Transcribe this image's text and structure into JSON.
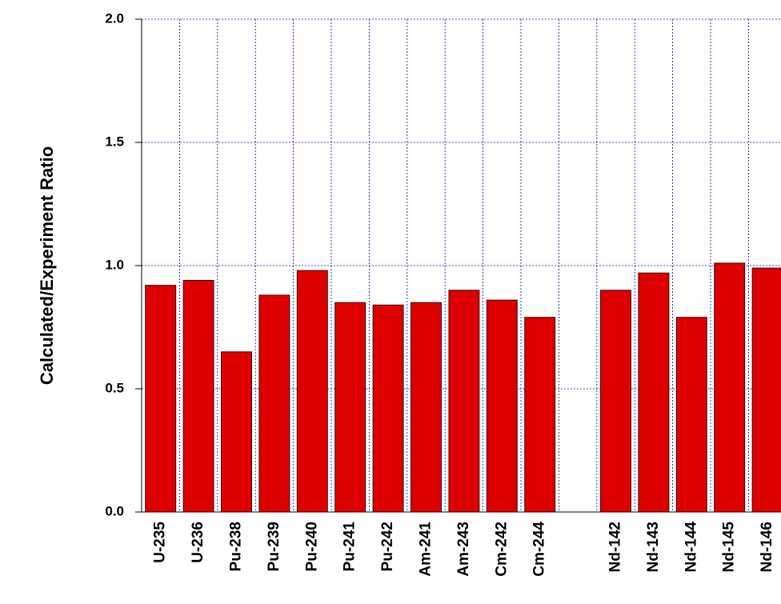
{
  "chart_data": {
    "type": "bar",
    "y_label": "Calculated/Experiment Ratio",
    "categories": [
      "U-235",
      "U-236",
      "Pu-238",
      "Pu-239",
      "Pu-240",
      "Pu-241",
      "Pu-242",
      "Am-241",
      "Am-243",
      "Cm-242",
      "Cm-244",
      null,
      "Nd-142",
      "Nd-143",
      "Nd-144",
      "Nd-145",
      "Nd-146"
    ],
    "values": [
      0.92,
      0.94,
      0.65,
      0.88,
      0.98,
      0.85,
      0.84,
      0.85,
      0.9,
      0.86,
      0.79,
      null,
      0.9,
      0.97,
      0.79,
      1.01,
      0.99
    ],
    "color": "#dd0000",
    "ylim": [
      0,
      2
    ],
    "yticks": [
      {
        "value": 0,
        "label": "0.0"
      },
      {
        "value": 0.5,
        "label": "0.5"
      },
      {
        "value": 1,
        "label": "1.0"
      },
      {
        "value": 1.5,
        "label": "1.5"
      },
      {
        "value": 2,
        "label": "2.0"
      }
    ],
    "grid": true
  }
}
